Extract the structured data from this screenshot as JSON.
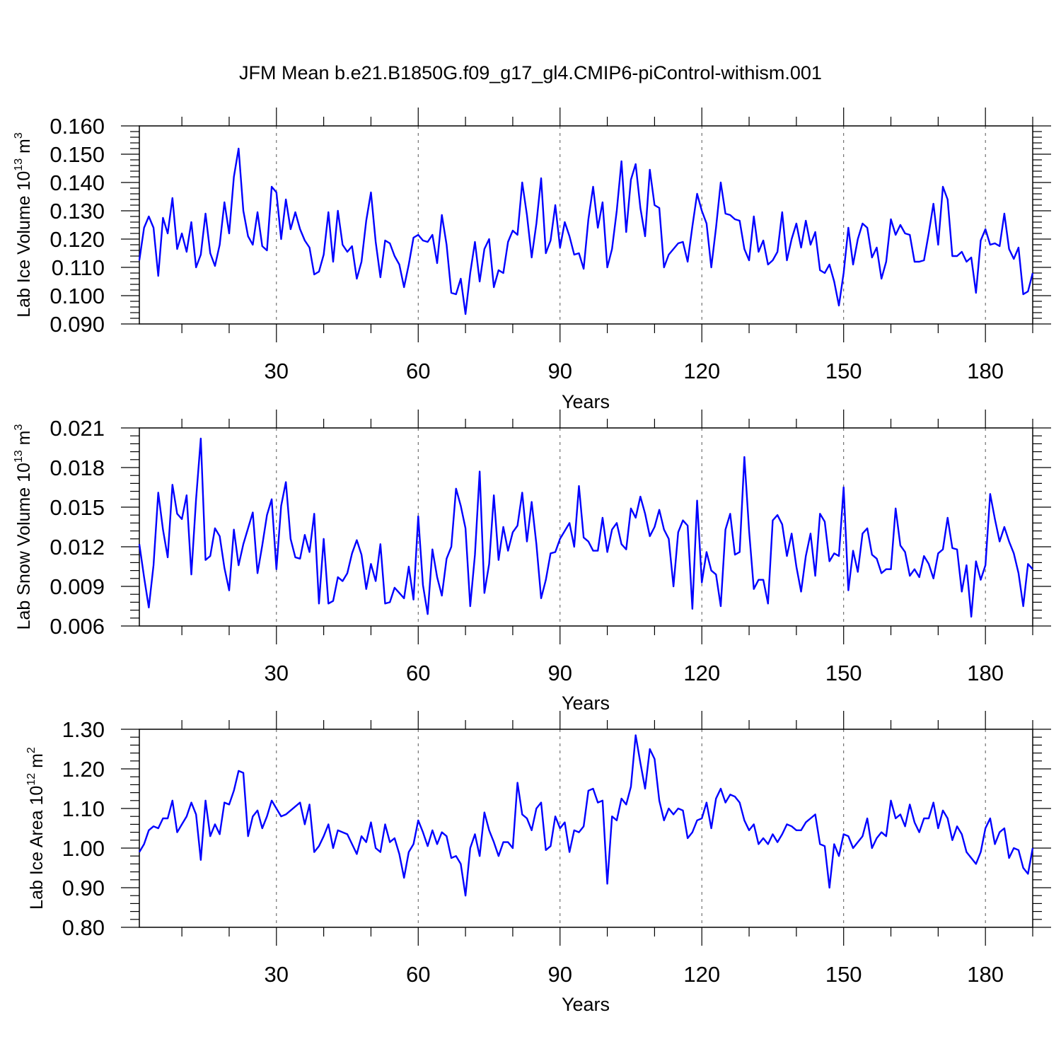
{
  "title": "JFM Mean b.e21.B1850G.f09_g17_gl4.CMIP6-piControl-withism.001",
  "colors": {
    "line": "#0000ff",
    "axis": "#000000"
  },
  "chart_data": [
    {
      "type": "line",
      "series_name": "Lab Ice Volume",
      "ylabel_main": "Lab Ice Volume 10",
      "ylabel_exp": "13",
      "ylabel_unit": " m",
      "ylabel_unit_exp": "3",
      "xlabel": "Years",
      "xlim": [
        1,
        190
      ],
      "ylim": [
        0.09,
        0.16
      ],
      "yticks": [
        0.09,
        0.1,
        0.11,
        0.12,
        0.13,
        0.14,
        0.15,
        0.16
      ],
      "ytick_labels": [
        "0.090",
        "0.100",
        "0.110",
        "0.120",
        "0.130",
        "0.140",
        "0.150",
        "0.160"
      ],
      "xticks": [
        30,
        60,
        90,
        120,
        150,
        180
      ],
      "xtick_labels": [
        "30",
        "60",
        "90",
        "120",
        "150",
        "180"
      ],
      "grid": "vertical dashed at major x ticks",
      "values": [
        0.1125,
        0.124,
        0.128,
        0.124,
        0.107,
        0.1275,
        0.122,
        0.1345,
        0.1165,
        0.122,
        0.1155,
        0.126,
        0.11,
        0.1145,
        0.129,
        0.115,
        0.1105,
        0.118,
        0.133,
        0.122,
        0.142,
        0.152,
        0.13,
        0.121,
        0.118,
        0.1295,
        0.1175,
        0.116,
        0.1385,
        0.1365,
        0.12,
        0.134,
        0.1235,
        0.1295,
        0.1235,
        0.1195,
        0.117,
        0.1075,
        0.1085,
        0.1145,
        0.1295,
        0.112,
        0.13,
        0.118,
        0.1155,
        0.1175,
        0.106,
        0.112,
        0.1265,
        0.1365,
        0.119,
        0.1065,
        0.1195,
        0.1185,
        0.114,
        0.111,
        0.103,
        0.111,
        0.1205,
        0.1215,
        0.1195,
        0.119,
        0.1215,
        0.1115,
        0.1285,
        0.118,
        0.101,
        0.1005,
        0.106,
        0.0935,
        0.108,
        0.119,
        0.105,
        0.1165,
        0.12,
        0.103,
        0.109,
        0.108,
        0.119,
        0.123,
        0.1215,
        0.14,
        0.1285,
        0.1135,
        0.1255,
        0.1415,
        0.115,
        0.1195,
        0.132,
        0.117,
        0.126,
        0.121,
        0.1145,
        0.115,
        0.1095,
        0.127,
        0.1385,
        0.124,
        0.133,
        0.11,
        0.1165,
        0.13,
        0.1475,
        0.1225,
        0.141,
        0.1465,
        0.131,
        0.121,
        0.1445,
        0.132,
        0.131,
        0.11,
        0.1145,
        0.1165,
        0.1185,
        0.119,
        0.112,
        0.1245,
        0.136,
        0.13,
        0.1255,
        0.11,
        0.124,
        0.14,
        0.129,
        0.1285,
        0.127,
        0.1265,
        0.1165,
        0.1125,
        0.128,
        0.1155,
        0.1195,
        0.111,
        0.1125,
        0.1155,
        0.1295,
        0.1125,
        0.12,
        0.1255,
        0.117,
        0.1265,
        0.118,
        0.1225,
        0.109,
        0.108,
        0.111,
        0.105,
        0.0965,
        0.108,
        0.124,
        0.111,
        0.12,
        0.1255,
        0.124,
        0.1135,
        0.117,
        0.106,
        0.112,
        0.127,
        0.1215,
        0.125,
        0.122,
        0.1215,
        0.112,
        0.112,
        0.1125,
        0.122,
        0.1325,
        0.118,
        0.1385,
        0.134,
        0.114,
        0.114,
        0.1155,
        0.112,
        0.1135,
        0.101,
        0.1195,
        0.1235,
        0.118,
        0.1185,
        0.1175,
        0.129,
        0.1165,
        0.113,
        0.117,
        0.1005,
        0.1015,
        0.108
      ]
    },
    {
      "type": "line",
      "series_name": "Lab Snow Volume",
      "ylabel_main": "Lab Snow Volume 10",
      "ylabel_exp": "13",
      "ylabel_unit": " m",
      "ylabel_unit_exp": "3",
      "xlabel": "Years",
      "xlim": [
        1,
        190
      ],
      "ylim": [
        0.006,
        0.021
      ],
      "yticks": [
        0.006,
        0.009,
        0.012,
        0.015,
        0.018,
        0.021
      ],
      "ytick_labels": [
        "0.006",
        "0.009",
        "0.012",
        "0.015",
        "0.018",
        "0.021"
      ],
      "xticks": [
        30,
        60,
        90,
        120,
        150,
        180
      ],
      "xtick_labels": [
        "30",
        "60",
        "90",
        "120",
        "150",
        "180"
      ],
      "grid": "vertical dashed at major x ticks",
      "values": [
        0.0122,
        0.0097,
        0.0074,
        0.0106,
        0.0161,
        0.0133,
        0.0112,
        0.0167,
        0.0145,
        0.0141,
        0.0159,
        0.0099,
        0.0156,
        0.0202,
        0.011,
        0.0113,
        0.0134,
        0.0128,
        0.0104,
        0.0087,
        0.0133,
        0.0106,
        0.0122,
        0.0134,
        0.0146,
        0.01,
        0.0121,
        0.0144,
        0.0156,
        0.0103,
        0.0151,
        0.0169,
        0.0126,
        0.0112,
        0.0111,
        0.0129,
        0.0116,
        0.0145,
        0.0077,
        0.0126,
        0.0077,
        0.0079,
        0.0097,
        0.0094,
        0.01,
        0.0115,
        0.0125,
        0.0114,
        0.0088,
        0.0107,
        0.0094,
        0.0122,
        0.0077,
        0.0078,
        0.0089,
        0.0085,
        0.0081,
        0.0105,
        0.008,
        0.0143,
        0.0091,
        0.0069,
        0.0118,
        0.0097,
        0.0083,
        0.0111,
        0.012,
        0.0164,
        0.0151,
        0.0134,
        0.0075,
        0.0114,
        0.0177,
        0.0085,
        0.0107,
        0.0159,
        0.011,
        0.0135,
        0.0117,
        0.0131,
        0.0136,
        0.0161,
        0.0124,
        0.0154,
        0.0122,
        0.0081,
        0.0095,
        0.0115,
        0.0116,
        0.0126,
        0.0132,
        0.0138,
        0.012,
        0.0166,
        0.0127,
        0.0124,
        0.0117,
        0.0117,
        0.0142,
        0.0116,
        0.0133,
        0.0138,
        0.0122,
        0.0118,
        0.0149,
        0.0142,
        0.0158,
        0.0145,
        0.0128,
        0.0135,
        0.0148,
        0.0133,
        0.0126,
        0.009,
        0.0131,
        0.014,
        0.0136,
        0.0073,
        0.0155,
        0.0093,
        0.0116,
        0.0102,
        0.0099,
        0.0075,
        0.0133,
        0.0145,
        0.0114,
        0.0116,
        0.0188,
        0.0132,
        0.0088,
        0.0095,
        0.0095,
        0.0077,
        0.014,
        0.0144,
        0.0137,
        0.0113,
        0.013,
        0.0105,
        0.0086,
        0.0113,
        0.013,
        0.0098,
        0.0145,
        0.0139,
        0.0109,
        0.0115,
        0.0113,
        0.0165,
        0.0087,
        0.0117,
        0.0101,
        0.013,
        0.0134,
        0.0114,
        0.0111,
        0.01,
        0.0103,
        0.0103,
        0.0149,
        0.0121,
        0.0116,
        0.0098,
        0.0103,
        0.0097,
        0.0113,
        0.0107,
        0.0096,
        0.0115,
        0.0118,
        0.0142,
        0.0119,
        0.0118,
        0.0086,
        0.0106,
        0.0067,
        0.0109,
        0.0095,
        0.0106,
        0.016,
        0.0141,
        0.0124,
        0.0135,
        0.0124,
        0.0115,
        0.01,
        0.0075,
        0.0107,
        0.0103
      ]
    },
    {
      "type": "line",
      "series_name": "Lab Ice Area",
      "ylabel_main": "Lab Ice Area 10",
      "ylabel_exp": "12",
      "ylabel_unit": " m",
      "ylabel_unit_exp": "2",
      "xlabel": "Years",
      "xlim": [
        1,
        190
      ],
      "ylim": [
        0.8,
        1.3
      ],
      "yticks": [
        0.8,
        0.9,
        1.0,
        1.1,
        1.2,
        1.3
      ],
      "ytick_labels": [
        "0.80",
        "0.90",
        "1.00",
        "1.10",
        "1.20",
        "1.30"
      ],
      "xticks": [
        30,
        60,
        90,
        120,
        150,
        180
      ],
      "xtick_labels": [
        "30",
        "60",
        "90",
        "120",
        "150",
        "180"
      ],
      "grid": "vertical dashed at major x ticks",
      "values": [
        0.99,
        1.01,
        1.045,
        1.055,
        1.05,
        1.075,
        1.075,
        1.12,
        1.04,
        1.06,
        1.08,
        1.115,
        1.085,
        0.97,
        1.12,
        1.03,
        1.06,
        1.035,
        1.115,
        1.11,
        1.145,
        1.195,
        1.19,
        1.03,
        1.08,
        1.095,
        1.05,
        1.08,
        1.12,
        1.1,
        1.08,
        1.085,
        1.095,
        1.105,
        1.115,
        1.06,
        1.11,
        0.99,
        1.005,
        1.03,
        1.06,
        1.0,
        1.045,
        1.04,
        1.035,
        1.01,
        0.985,
        1.03,
        1.015,
        1.065,
        1.0,
        0.99,
        1.06,
        1.015,
        1.025,
        0.985,
        0.925,
        0.99,
        1.01,
        1.07,
        1.04,
        1.005,
        1.045,
        1.01,
        1.04,
        1.03,
        0.975,
        0.98,
        0.96,
        0.88,
        1.0,
        1.035,
        0.98,
        1.09,
        1.045,
        1.015,
        0.98,
        1.015,
        1.015,
        1.0,
        1.165,
        1.085,
        1.075,
        1.045,
        1.1,
        1.115,
        0.995,
        1.005,
        1.08,
        1.05,
        1.065,
        0.99,
        1.045,
        1.04,
        1.055,
        1.145,
        1.15,
        1.115,
        1.12,
        0.91,
        1.08,
        1.07,
        1.125,
        1.11,
        1.155,
        1.285,
        1.215,
        1.15,
        1.25,
        1.225,
        1.12,
        1.07,
        1.1,
        1.085,
        1.1,
        1.095,
        1.025,
        1.04,
        1.07,
        1.075,
        1.115,
        1.05,
        1.125,
        1.15,
        1.115,
        1.135,
        1.13,
        1.115,
        1.07,
        1.045,
        1.06,
        1.01,
        1.025,
        1.01,
        1.035,
        1.015,
        1.035,
        1.06,
        1.055,
        1.045,
        1.045,
        1.065,
        1.075,
        1.085,
        1.01,
        1.005,
        0.9,
        1.01,
        0.98,
        1.035,
        1.03,
        1.0,
        1.015,
        1.03,
        1.075,
        1.0,
        1.025,
        1.04,
        1.03,
        1.12,
        1.075,
        1.085,
        1.055,
        1.11,
        1.065,
        1.04,
        1.075,
        1.075,
        1.115,
        1.05,
        1.095,
        1.075,
        1.02,
        1.055,
        1.035,
        0.99,
        0.975,
        0.96,
        0.99,
        1.05,
        1.075,
        1.01,
        1.04,
        1.05,
        0.975,
        1.0,
        0.995,
        0.95,
        0.935,
        1.0
      ]
    }
  ]
}
